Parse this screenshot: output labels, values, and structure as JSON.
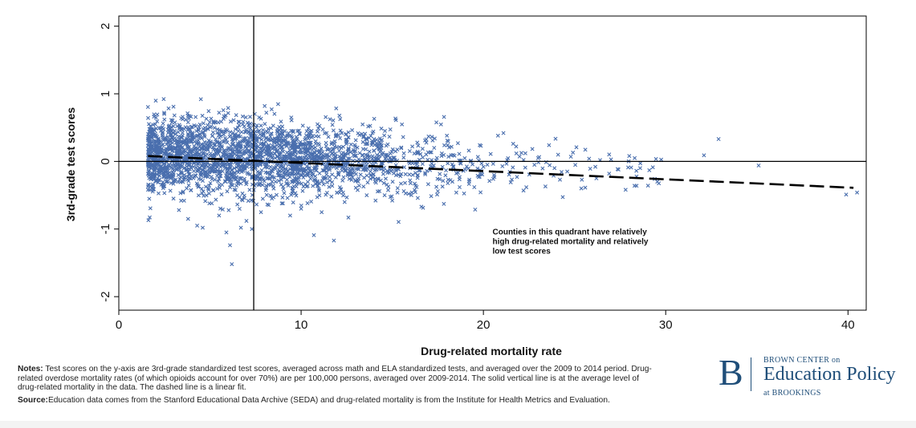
{
  "chart_data": {
    "type": "scatter",
    "title": "",
    "xlabel": "Drug-related mortality rate",
    "ylabel": "3rd-grade test scores",
    "xlim": [
      0,
      41
    ],
    "ylim": [
      -2.2,
      2.15
    ],
    "x_ticks": [
      0,
      10,
      20,
      30,
      40
    ],
    "y_ticks": [
      -2,
      -1,
      0,
      1,
      2
    ],
    "grid": false,
    "marker": "x",
    "point_color": "#4a6fae",
    "reference_lines": {
      "vertical_x": 7.4,
      "horizontal_y": 0
    },
    "linear_fit": {
      "style": "dashed",
      "x_start": 1.6,
      "y_start": 0.08,
      "x_end": 40.3,
      "y_end": -0.39
    },
    "annotation": {
      "text": [
        "Counties in this quadrant have relatively",
        "high drug-related mortality and relatively",
        "low test scores"
      ],
      "x": 20.5,
      "y": -1.08
    },
    "points": [
      [
        1.8,
        0.42
      ],
      [
        2.0,
        0.55
      ],
      [
        2.2,
        0.3
      ],
      [
        2.5,
        0.62
      ],
      [
        2.8,
        0.48
      ],
      [
        3.0,
        0.81
      ],
      [
        3.2,
        0.52
      ],
      [
        3.5,
        0.66
      ],
      [
        3.8,
        0.58
      ],
      [
        4.0,
        0.38
      ],
      [
        4.5,
        0.92
      ],
      [
        4.8,
        0.63
      ],
      [
        5.2,
        0.59
      ],
      [
        5.5,
        0.72
      ],
      [
        6.0,
        0.79
      ],
      [
        6.3,
        0.61
      ],
      [
        6.8,
        0.55
      ],
      [
        7.2,
        0.66
      ],
      [
        7.8,
        0.53
      ],
      [
        8.2,
        0.48
      ],
      [
        8.8,
        0.51
      ],
      [
        9.3,
        0.42
      ],
      [
        9.8,
        0.45
      ],
      [
        10.4,
        0.49
      ],
      [
        10.9,
        0.55
      ],
      [
        11.4,
        0.42
      ],
      [
        11.9,
        0.37
      ],
      [
        12.6,
        0.43
      ],
      [
        13.2,
        0.39
      ],
      [
        14.0,
        0.33
      ],
      [
        14.6,
        0.45
      ],
      [
        15.2,
        0.61
      ],
      [
        15.6,
        0.36
      ],
      [
        16.1,
        0.22
      ],
      [
        16.8,
        0.31
      ],
      [
        17.3,
        0.2
      ],
      [
        18.0,
        0.38
      ],
      [
        18.6,
        0.27
      ],
      [
        19.2,
        0.16
      ],
      [
        19.8,
        0.24
      ],
      [
        20.4,
        0.11
      ],
      [
        20.8,
        0.38
      ],
      [
        21.1,
        0.42
      ],
      [
        21.8,
        0.22
      ],
      [
        22.3,
        0.12
      ],
      [
        23.0,
        0.05
      ],
      [
        23.6,
        0.24
      ],
      [
        24.1,
        0.1
      ],
      [
        24.8,
        0.07
      ],
      [
        25.1,
        0.21
      ],
      [
        25.8,
        0.04
      ],
      [
        26.4,
        0.02
      ],
      [
        27.0,
        0.03
      ],
      [
        28.0,
        0.08
      ],
      [
        28.3,
        0.05
      ],
      [
        28.6,
        -0.1
      ],
      [
        29.1,
        -0.13
      ],
      [
        32.1,
        0.09
      ],
      [
        32.9,
        0.33
      ],
      [
        35.1,
        -0.06
      ],
      [
        39.9,
        -0.49
      ],
      [
        40.5,
        -0.46
      ],
      [
        2.2,
        -0.1
      ],
      [
        2.6,
        -0.3
      ],
      [
        3.0,
        -0.55
      ],
      [
        3.3,
        -0.72
      ],
      [
        3.8,
        -0.85
      ],
      [
        4.3,
        -0.95
      ],
      [
        4.6,
        -0.98
      ],
      [
        5.1,
        -0.62
      ],
      [
        5.5,
        -0.8
      ],
      [
        5.9,
        -1.05
      ],
      [
        6.1,
        -1.24
      ],
      [
        6.2,
        -1.52
      ],
      [
        6.7,
        -0.98
      ],
      [
        7.0,
        -0.88
      ],
      [
        7.3,
        -1.0
      ],
      [
        7.8,
        -0.75
      ],
      [
        8.4,
        -0.55
      ],
      [
        9.0,
        -0.62
      ],
      [
        9.4,
        -0.8
      ],
      [
        10.0,
        -0.7
      ],
      [
        10.7,
        -1.09
      ],
      [
        11.8,
        -1.17
      ],
      [
        12.3,
        -0.46
      ],
      [
        13.0,
        -0.39
      ],
      [
        13.6,
        -0.5
      ],
      [
        14.3,
        -0.44
      ],
      [
        15.0,
        -0.58
      ],
      [
        15.9,
        -0.48
      ],
      [
        16.6,
        -0.67
      ],
      [
        17.5,
        -0.44
      ],
      [
        18.3,
        -0.3
      ],
      [
        19.5,
        -0.38
      ],
      [
        20.6,
        -0.23
      ],
      [
        21.5,
        -0.31
      ],
      [
        22.2,
        -0.43
      ],
      [
        23.4,
        -0.37
      ],
      [
        24.2,
        -0.27
      ],
      [
        25.4,
        -0.27
      ],
      [
        26.2,
        -0.25
      ],
      [
        27.8,
        -0.42
      ],
      [
        28.4,
        -0.36
      ],
      [
        29.4,
        -0.26
      ],
      [
        3.6,
        -0.2
      ],
      [
        4.9,
        -0.4
      ],
      [
        6.5,
        -0.5
      ],
      [
        8.6,
        -0.3
      ],
      [
        11.2,
        -0.25
      ],
      [
        13.8,
        -0.15
      ],
      [
        16.4,
        -0.2
      ],
      [
        19.0,
        -0.12
      ],
      [
        22.8,
        -0.05
      ],
      [
        24.6,
        -0.15
      ],
      [
        26.9,
        -0.18
      ],
      [
        10.1,
        0.25
      ],
      [
        12.2,
        0.2
      ],
      [
        14.9,
        0.12
      ],
      [
        17.7,
        0.08
      ],
      [
        19.9,
        -0.03
      ],
      [
        21.3,
        0.02
      ],
      [
        23.9,
        -0.1
      ]
    ],
    "density_clusters": [
      {
        "x_min": 1.6,
        "x_max": 9.5,
        "y_mean": 0.07,
        "y_sd": 0.27,
        "n": 1650
      },
      {
        "x_min": 9.5,
        "x_max": 14.5,
        "y_mean": 0.0,
        "y_sd": 0.25,
        "n": 650
      },
      {
        "x_min": 14.5,
        "x_max": 20.0,
        "y_mean": -0.05,
        "y_sd": 0.25,
        "n": 210
      },
      {
        "x_min": 20.0,
        "x_max": 30.0,
        "y_mean": -0.07,
        "y_sd": 0.22,
        "n": 55
      }
    ]
  },
  "notes": {
    "label": "Notes:",
    "text": "Test scores on the y-axis are 3rd-grade standardized test scores, averaged across math and ELA standardized tests, and averaged over the 2009 to 2014 period. Drug-related overdose mortality rates (of which opioids account for over 70%) are per 100,000 persons, averaged over 2009-2014. The solid vertical line is at the average level of drug-related mortality in the data. The dashed line is a linear fit."
  },
  "source": {
    "label": "Source:",
    "text": "Education data comes from the Stanford Educational Data Archive (SEDA) and drug-related mortality is from the Institute for Health Metrics and Evaluation."
  },
  "brand": {
    "mark": "B",
    "line1": "BROWN CENTER on",
    "line2": "Education Policy",
    "line3": "at BROOKINGS",
    "color": "#1f4e79"
  }
}
